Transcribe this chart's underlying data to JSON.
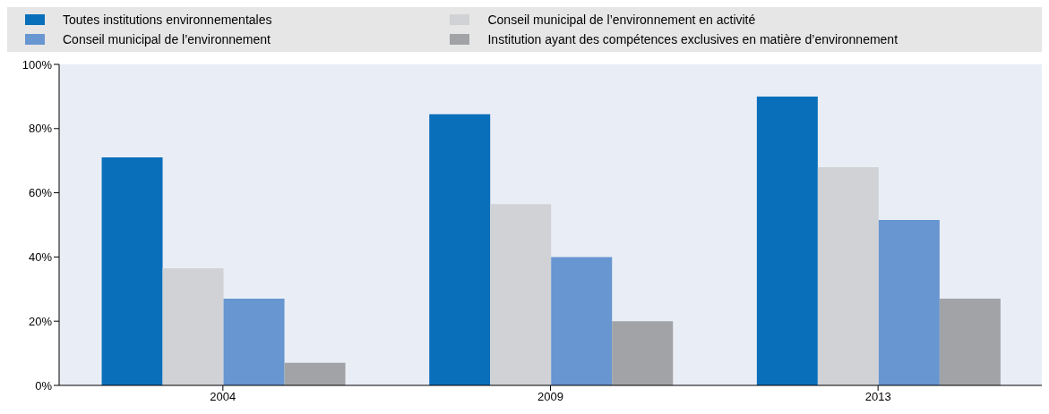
{
  "chart_data": {
    "type": "bar",
    "categories": [
      "2004",
      "2009",
      "2013"
    ],
    "series": [
      {
        "name": "Toutes institutions environnementales",
        "color": "#0a6fbb",
        "values": [
          71,
          84.5,
          90
        ]
      },
      {
        "name": "Conseil municipal de l’environnement en activité",
        "color": "#d0d2d5",
        "values": [
          36.5,
          56.5,
          68
        ]
      },
      {
        "name": "Conseil municipal de l’environnement",
        "color": "#6796d0",
        "values": [
          27,
          40,
          51.5
        ]
      },
      {
        "name": "Institution ayant des compétences exclusives en matière d’environnement",
        "color": "#a1a3a6",
        "values": [
          7,
          20,
          27
        ]
      }
    ],
    "ylim": [
      0,
      100
    ],
    "yticks": [
      {
        "value": 0,
        "label": "0%"
      },
      {
        "value": 20,
        "label": "20%"
      },
      {
        "value": 40,
        "label": "40%"
      },
      {
        "value": 60,
        "label": "60%"
      },
      {
        "value": 80,
        "label": "80%"
      },
      {
        "value": 100,
        "label": "100%"
      }
    ],
    "grid": false,
    "legend": "top"
  }
}
